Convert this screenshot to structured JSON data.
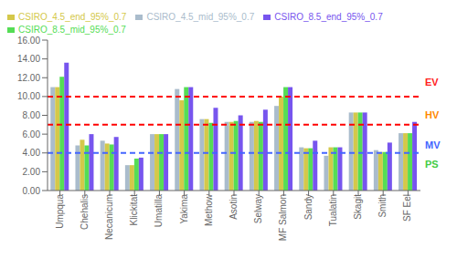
{
  "chart_data": {
    "type": "bar",
    "categories": [
      "Umpqua",
      "Chehalis",
      "Necanicum",
      "Klickitat",
      "Umatilla",
      "Yakima",
      "Methow",
      "Asotin",
      "Selway",
      "MF Salmon",
      "Sandy",
      "Tualatin",
      "Skagit",
      "Smith",
      "SF Eel"
    ],
    "series": [
      {
        "name": "CSIRO_4.5_mid_95%_0.7",
        "color": "#aabccc",
        "values": [
          11.0,
          4.8,
          5.3,
          2.7,
          6.0,
          10.8,
          7.6,
          7.3,
          7.3,
          9.0,
          4.6,
          3.7,
          8.3,
          4.3,
          6.1
        ]
      },
      {
        "name": "CSIRO_4.5_end_95%_0.7",
        "color": "#d4c84a",
        "values": [
          11.0,
          5.4,
          5.0,
          2.7,
          6.0,
          9.6,
          7.6,
          7.3,
          7.4,
          10.0,
          4.5,
          4.6,
          8.3,
          4.1,
          6.1
        ]
      },
      {
        "name": "CSIRO_8.5_mid_95%_0.7",
        "color": "#55dd55",
        "values": [
          12.1,
          4.8,
          4.9,
          3.4,
          6.0,
          11.0,
          7.2,
          7.4,
          7.3,
          11.0,
          4.5,
          4.6,
          8.3,
          4.1,
          6.1
        ]
      },
      {
        "name": "CSIRO_8.5_end_95%_0.7",
        "color": "#7755ee",
        "values": [
          13.6,
          6.0,
          5.7,
          3.5,
          6.0,
          11.0,
          8.8,
          8.0,
          8.6,
          11.0,
          5.3,
          4.6,
          8.3,
          5.1,
          7.3
        ]
      }
    ],
    "hlines": [
      {
        "y": 10.0,
        "color": "#ff0000",
        "line_style": "dashed"
      },
      {
        "y": 7.0,
        "color": "#ff0000",
        "line_style": "dashed"
      },
      {
        "y": 4.0,
        "color": "#4466ff",
        "line_style": "dashed"
      }
    ],
    "annotations": [
      {
        "text": "EV",
        "y": 11.5,
        "color": "#ff2222"
      },
      {
        "text": "HV",
        "y": 8.0,
        "color": "#ff8800"
      },
      {
        "text": "MV",
        "y": 4.8,
        "color": "#4466ff"
      },
      {
        "text": "PS",
        "y": 2.8,
        "color": "#44cc44"
      }
    ],
    "ylim": [
      0,
      16
    ],
    "yticks": [
      {
        "value": 0,
        "label": "0.00"
      },
      {
        "value": 2,
        "label": "2.00"
      },
      {
        "value": 4,
        "label": "4.00"
      },
      {
        "value": 6,
        "label": "6.00"
      },
      {
        "value": 8,
        "label": "8.00"
      },
      {
        "value": 10,
        "label": "10.00"
      },
      {
        "value": 12,
        "label": "12.00"
      },
      {
        "value": 14,
        "label": "14.00"
      },
      {
        "value": 16,
        "label": "16.00"
      }
    ],
    "legend": "upper left",
    "grid": false
  }
}
